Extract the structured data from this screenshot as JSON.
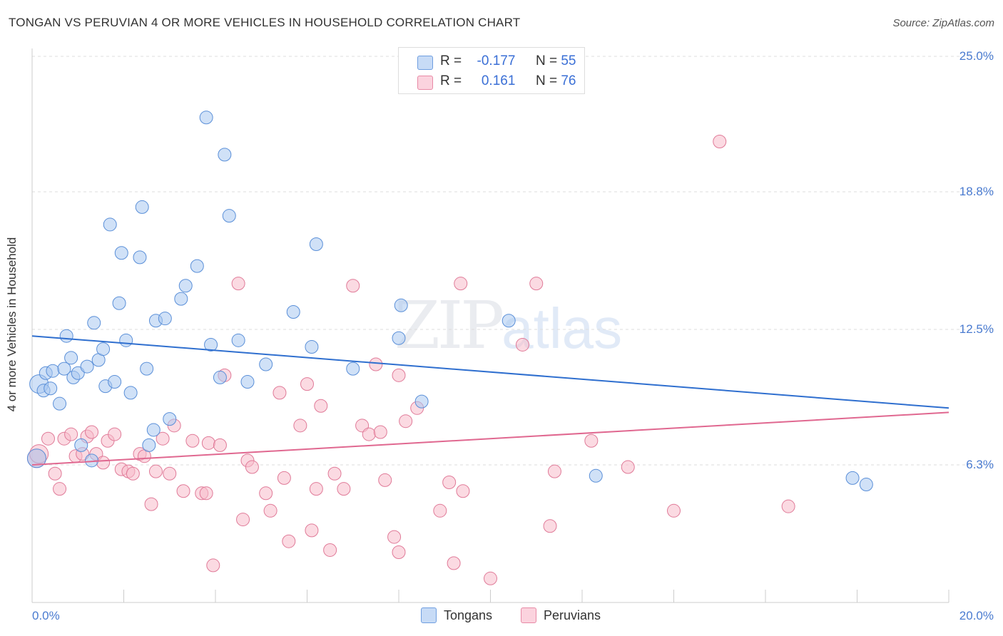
{
  "header": {
    "title": "TONGAN VS PERUVIAN 4 OR MORE VEHICLES IN HOUSEHOLD CORRELATION CHART",
    "source": "Source: ZipAtlas.com"
  },
  "watermark": {
    "zip": "ZIP",
    "atlas": "atlas"
  },
  "stats_legend": {
    "rows": [
      {
        "r_label": "R =",
        "r_value": "-0.177",
        "n_label": "N =",
        "n_value": "55",
        "color": "#a9c8f0"
      },
      {
        "r_label": "R =",
        "r_value": "0.161",
        "n_label": "N =",
        "n_value": "76",
        "color": "#f7bccb"
      }
    ]
  },
  "bottom_legend": {
    "tongans": "Tongans",
    "peruvians": "Peruvians"
  },
  "colors": {
    "tongan_fill": "#a9c8f0",
    "tongan_stroke": "#5a8fd8",
    "tongan_line": "#2f6fcf",
    "peruvian_fill": "#f7bccb",
    "peruvian_stroke": "#e07a98",
    "peruvian_line": "#e06890",
    "tick_label": "#4a7bd0",
    "grid": "#dddddd"
  },
  "chart_data": {
    "type": "scatter",
    "title": "TONGAN VS PERUVIAN 4 OR MORE VEHICLES IN HOUSEHOLD CORRELATION CHART",
    "xlabel": "",
    "ylabel": "4 or more Vehicles in Household",
    "xlim": [
      0,
      20
    ],
    "ylim": [
      0,
      25
    ],
    "x_tick_labels": [
      "0.0%",
      "20.0%"
    ],
    "y_ticks": [
      6.3,
      12.5,
      18.8,
      25.0
    ],
    "y_tick_labels": [
      "6.3%",
      "12.5%",
      "18.8%",
      "25.0%"
    ],
    "grid": true,
    "legend_position": "top-center",
    "series": [
      {
        "name": "Tongans",
        "r": -0.177,
        "n": 55,
        "trend": [
          [
            0,
            12.2
          ],
          [
            20,
            8.9
          ]
        ],
        "points": [
          [
            0.1,
            6.6
          ],
          [
            0.15,
            10.0
          ],
          [
            0.25,
            9.7
          ],
          [
            0.3,
            10.5
          ],
          [
            0.4,
            9.8
          ],
          [
            0.45,
            10.6
          ],
          [
            0.6,
            9.1
          ],
          [
            0.7,
            10.7
          ],
          [
            0.75,
            12.2
          ],
          [
            0.85,
            11.2
          ],
          [
            0.9,
            10.3
          ],
          [
            1.0,
            10.5
          ],
          [
            1.2,
            10.8
          ],
          [
            1.07,
            7.2
          ],
          [
            1.3,
            6.5
          ],
          [
            1.35,
            12.8
          ],
          [
            1.45,
            11.1
          ],
          [
            1.55,
            11.6
          ],
          [
            1.6,
            9.9
          ],
          [
            1.7,
            17.3
          ],
          [
            1.8,
            10.1
          ],
          [
            1.9,
            13.7
          ],
          [
            1.95,
            16.0
          ],
          [
            2.05,
            12.0
          ],
          [
            2.15,
            9.6
          ],
          [
            2.35,
            15.8
          ],
          [
            2.4,
            18.1
          ],
          [
            2.5,
            10.7
          ],
          [
            2.55,
            7.2
          ],
          [
            2.65,
            7.9
          ],
          [
            2.7,
            12.9
          ],
          [
            2.9,
            13.0
          ],
          [
            3.0,
            8.4
          ],
          [
            3.25,
            13.9
          ],
          [
            3.35,
            14.5
          ],
          [
            3.6,
            15.4
          ],
          [
            3.8,
            22.2
          ],
          [
            3.9,
            11.8
          ],
          [
            4.1,
            10.3
          ],
          [
            4.2,
            20.5
          ],
          [
            4.3,
            17.7
          ],
          [
            4.5,
            12.0
          ],
          [
            4.7,
            10.1
          ],
          [
            5.1,
            10.9
          ],
          [
            5.7,
            13.3
          ],
          [
            6.1,
            11.7
          ],
          [
            6.2,
            16.4
          ],
          [
            7.0,
            10.7
          ],
          [
            8.0,
            12.1
          ],
          [
            8.05,
            13.6
          ],
          [
            8.5,
            9.2
          ],
          [
            10.4,
            12.9
          ],
          [
            12.3,
            5.8
          ],
          [
            17.9,
            5.7
          ],
          [
            18.2,
            5.4
          ]
        ]
      },
      {
        "name": "Peruvians",
        "r": 0.161,
        "n": 76,
        "trend": [
          [
            0,
            6.3
          ],
          [
            20,
            8.7
          ]
        ],
        "points": [
          [
            0.1,
            6.6
          ],
          [
            0.15,
            6.8
          ],
          [
            0.35,
            7.5
          ],
          [
            0.5,
            5.9
          ],
          [
            0.6,
            5.2
          ],
          [
            0.7,
            7.5
          ],
          [
            0.85,
            7.7
          ],
          [
            0.95,
            6.7
          ],
          [
            1.1,
            6.8
          ],
          [
            1.2,
            7.6
          ],
          [
            1.3,
            7.8
          ],
          [
            1.4,
            6.8
          ],
          [
            1.55,
            6.4
          ],
          [
            1.65,
            7.4
          ],
          [
            1.8,
            7.7
          ],
          [
            1.95,
            6.1
          ],
          [
            2.1,
            6.0
          ],
          [
            2.2,
            5.9
          ],
          [
            2.35,
            6.8
          ],
          [
            2.45,
            6.7
          ],
          [
            2.6,
            4.5
          ],
          [
            2.7,
            6.0
          ],
          [
            2.85,
            7.5
          ],
          [
            3.0,
            5.9
          ],
          [
            3.1,
            8.1
          ],
          [
            3.3,
            5.1
          ],
          [
            3.5,
            7.4
          ],
          [
            3.7,
            5.0
          ],
          [
            3.8,
            5.0
          ],
          [
            3.85,
            7.3
          ],
          [
            3.95,
            1.7
          ],
          [
            4.1,
            7.2
          ],
          [
            4.2,
            10.4
          ],
          [
            4.5,
            14.6
          ],
          [
            4.6,
            3.8
          ],
          [
            4.7,
            6.5
          ],
          [
            4.8,
            6.2
          ],
          [
            5.1,
            5.0
          ],
          [
            5.2,
            4.2
          ],
          [
            5.4,
            9.6
          ],
          [
            5.5,
            5.7
          ],
          [
            5.6,
            2.8
          ],
          [
            5.85,
            8.1
          ],
          [
            6.0,
            10.0
          ],
          [
            6.1,
            3.3
          ],
          [
            6.2,
            5.2
          ],
          [
            6.3,
            9.0
          ],
          [
            6.5,
            2.4
          ],
          [
            6.6,
            5.9
          ],
          [
            6.8,
            5.2
          ],
          [
            7.0,
            14.5
          ],
          [
            7.2,
            8.1
          ],
          [
            7.35,
            7.7
          ],
          [
            7.5,
            10.9
          ],
          [
            7.6,
            7.8
          ],
          [
            7.7,
            5.6
          ],
          [
            7.9,
            3.0
          ],
          [
            8.0,
            2.3
          ],
          [
            8.0,
            10.4
          ],
          [
            8.15,
            8.3
          ],
          [
            8.4,
            8.9
          ],
          [
            8.9,
            4.2
          ],
          [
            9.1,
            5.5
          ],
          [
            9.2,
            1.8
          ],
          [
            9.35,
            14.6
          ],
          [
            9.4,
            5.1
          ],
          [
            10.0,
            1.1
          ],
          [
            10.7,
            11.8
          ],
          [
            11.0,
            14.6
          ],
          [
            11.3,
            3.5
          ],
          [
            11.4,
            6.0
          ],
          [
            12.2,
            7.4
          ],
          [
            13.0,
            6.2
          ],
          [
            14.0,
            4.2
          ],
          [
            15.0,
            21.1
          ],
          [
            16.5,
            4.4
          ]
        ]
      }
    ]
  }
}
